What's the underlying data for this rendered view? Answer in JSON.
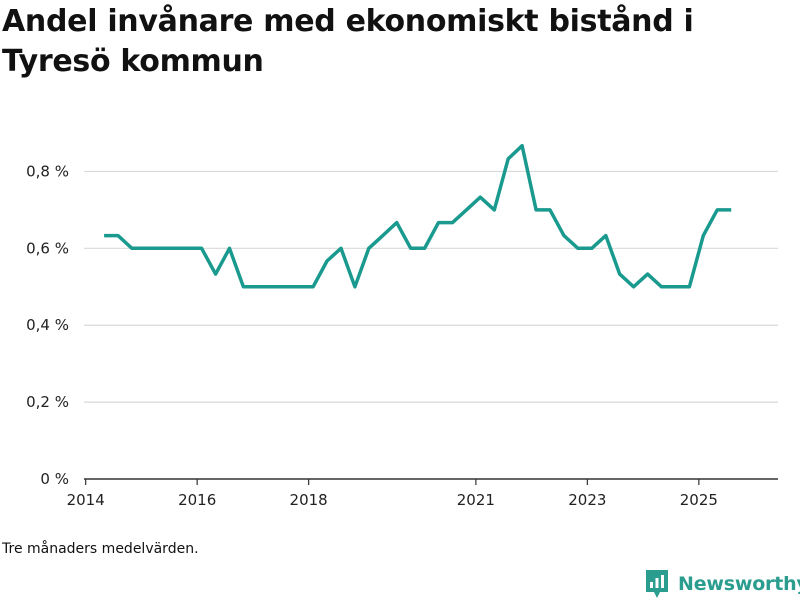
{
  "title": "Andel invånare med ekonomiskt bistånd i Tyresö kommun",
  "footnote": "Tre månaders medelvärden.",
  "brand": {
    "name": "Newsworthy",
    "icon": "newsworthy-logo-icon",
    "color": "#2a9d8f"
  },
  "chart_data": {
    "type": "line",
    "title": "Andel invånare med ekonomiskt bistånd i Tyresö kommun",
    "xlabel": "",
    "ylabel": "",
    "ylim": [
      0,
      0.9
    ],
    "xlim": [
      2013.97,
      2026.42
    ],
    "y_ticks": [
      {
        "value": 0,
        "label": "0 %"
      },
      {
        "value": 0.2,
        "label": "0,2 %"
      },
      {
        "value": 0.4,
        "label": "0,4 %"
      },
      {
        "value": 0.6,
        "label": "0,6 %"
      },
      {
        "value": 0.8,
        "label": "0,8 %"
      }
    ],
    "x_ticks": [
      {
        "value": 2014,
        "label": "2014"
      },
      {
        "value": 2016,
        "label": "2016"
      },
      {
        "value": 2018,
        "label": "2018"
      },
      {
        "value": 2021,
        "label": "2021"
      },
      {
        "value": 2023,
        "label": "2023"
      },
      {
        "value": 2025,
        "label": "2025"
      }
    ],
    "grid": true,
    "series": [
      {
        "name": "Andel invånare med ekonomiskt bistånd",
        "color": "#1a9a8e",
        "x": [
          2014.33,
          2014.58,
          2014.83,
          2015.08,
          2015.33,
          2015.58,
          2015.83,
          2016.08,
          2016.33,
          2016.58,
          2016.83,
          2017.08,
          2017.33,
          2017.58,
          2017.83,
          2018.08,
          2018.33,
          2018.58,
          2018.83,
          2019.08,
          2019.33,
          2019.58,
          2019.83,
          2020.08,
          2020.33,
          2020.58,
          2020.83,
          2021.08,
          2021.33,
          2021.58,
          2021.83,
          2022.08,
          2022.33,
          2022.58,
          2022.83,
          2023.08,
          2023.33,
          2023.58,
          2023.83,
          2024.08,
          2024.33,
          2024.58,
          2024.83,
          2025.08,
          2025.33,
          2025.58
        ],
        "values": [
          0.633,
          0.633,
          0.6,
          0.6,
          0.6,
          0.6,
          0.6,
          0.6,
          0.533,
          0.6,
          0.5,
          0.5,
          0.5,
          0.5,
          0.5,
          0.5,
          0.567,
          0.6,
          0.5,
          0.6,
          0.633,
          0.667,
          0.6,
          0.6,
          0.667,
          0.667,
          0.7,
          0.733,
          0.7,
          0.833,
          0.867,
          0.7,
          0.7,
          0.633,
          0.6,
          0.6,
          0.633,
          0.533,
          0.5,
          0.533,
          0.5,
          0.5,
          0.5,
          0.633,
          0.7,
          0.7
        ]
      }
    ]
  }
}
